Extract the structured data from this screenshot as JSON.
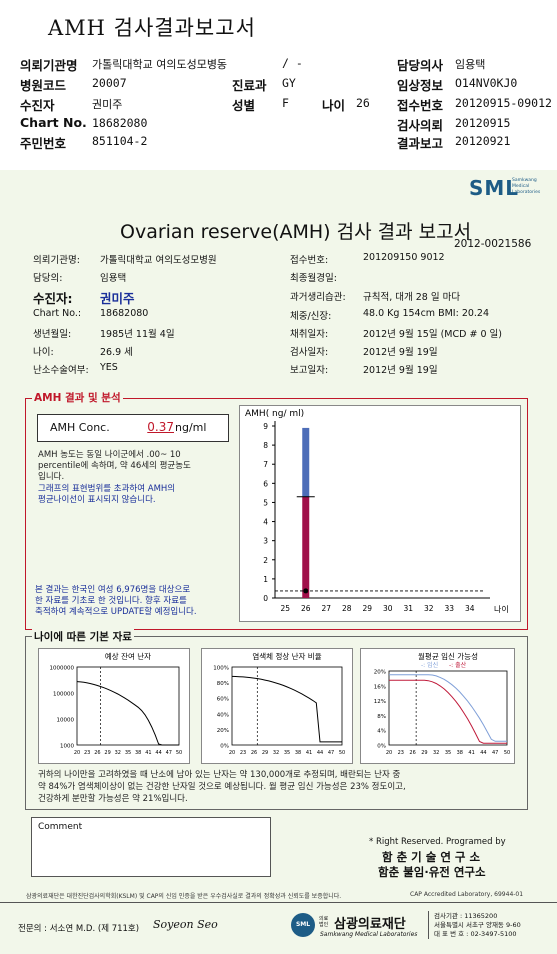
{
  "header": {
    "title": "AMH 검사결과보고서",
    "rows": [
      {
        "l1": "의뢰기관명",
        "v1": "가톨릭대학교 여의도성모병동",
        "v1b": "/ -",
        "l3": "담당의사",
        "v3": "임용택"
      },
      {
        "l1": "병원코드",
        "v1": "20007",
        "l2": "진료과",
        "v2": "GY",
        "l3": "임상정보",
        "v3": "O14NV0KJ0"
      },
      {
        "l1": "수진자",
        "v1": "권미주",
        "l2": "성별",
        "v2": "F",
        "l2b": "나이",
        "v2b": "26",
        "l3": "접수번호",
        "v3": "20120915-09012"
      },
      {
        "l1": "Chart No.",
        "v1": "18682080",
        "l3": "검사의뢰",
        "v3": "20120915"
      },
      {
        "l1": "주민번호",
        "v1": "851104-2",
        "l3": "결과보고",
        "v3": "20120921"
      }
    ]
  },
  "report": {
    "logo": "SML",
    "logo_sub": [
      "Samkwang",
      "Medical",
      "Laboratories"
    ],
    "title": "Ovarian reserve(AMH) 검사 결과 보고서",
    "doc_no": "2012-0021586",
    "left_info": [
      {
        "label": "의뢰기관명:",
        "value": "가톨릭대학교 여의도성모병원"
      },
      {
        "label": "담당의:",
        "value": "임용택"
      },
      {
        "label": "수진자:",
        "value": "권미주"
      },
      {
        "label": "Chart No.:",
        "value": "18682080"
      },
      {
        "label": "생년월일:",
        "value": "1985년 11월 4일"
      },
      {
        "label": "나이:",
        "value": "26.9 세"
      },
      {
        "label": "난소수술여부:",
        "value": "YES"
      }
    ],
    "right_info": [
      {
        "label": "접수번호:",
        "value": "201209150 9012"
      },
      {
        "label": "최종월경일:",
        "value": ""
      },
      {
        "label": "과거생리습관:",
        "value": "규칙적, 대개  28 일 마다"
      },
      {
        "label": "체중/신장:",
        "value": "48.0 Kg   154cm   BMI:  20.24"
      },
      {
        "label": "채취일자:",
        "value": "2012년 9월 15일   (MCD # 0 일)"
      },
      {
        "label": "검사일자:",
        "value": "2012년 9월 19일"
      },
      {
        "label": "보고일자:",
        "value": "2012년 9월 19일"
      }
    ],
    "amh_section": {
      "heading": "AMH 결과 및 분석",
      "conc_label": "AMH Conc.",
      "conc_value": "0.37",
      "conc_unit": "ng/ml",
      "note1": [
        "AMH 농도는 동일 나이군에서  .00~ 10",
        "percentile에 속하며,  약  46세의 평균농도",
        "입니다."
      ],
      "note2": [
        "그래프의 표현범위를 초과하여 AMH의",
        "평균나이선이 표시되지 않습니다."
      ],
      "note3": [
        "본 결과는 한국인 여성 6,976명을 대상으로",
        "한 자료를 기초로 한 것입니다. 향후 자료를",
        "축적하여 계속적으로 UPDATE할 예정입니다."
      ]
    },
    "basic_section": {
      "heading": "나이에 따른 기본 자료",
      "chart_titles": [
        "예상 잔여 난자",
        "염색체 정상 난자 비율",
        "월평균 임신 가능성"
      ],
      "legend": [
        "임신",
        "출산"
      ],
      "summary": [
        "귀하의 나이만을 고려하였을 때 난소에 남아 있는 난자는 약   130,000개로 추정되며, 배란되는 난자 중",
        "약  84%가 염색체이상이 없는 건강한 난자일 것으로 예상됩니다. 월 평균 임신 가능성은   23% 정도이고,",
        "건강하게 분만할 가능성은 약   21%입니다."
      ]
    },
    "comment_label": "Comment",
    "rights": "* Right Reserved. Programed by",
    "author1": "함 춘  기 술  연 구 소",
    "author2": "함춘 불임·유전 연구소",
    "footnote": "삼광의료재단은 대한진단검사의학회(KSLM) 및 CAP의 신임 인증을 받은 우수검사실로 결과의 정확성과 신뢰도를 보증합니다.",
    "cap": "CAP  Accredited  Laboratory,  69944-01",
    "specialist": "전문의 : 서소연 M.D. (제 711호)",
    "signature": "Soyeon Seo",
    "foundation": "삼광의료재단",
    "foundation_en": "Samkwang Medical Laboratories",
    "foundation_prefix": "의료 법인",
    "contact": [
      "검사기관 : 11365200",
      "서울특별시 서초구 양재동 9-60",
      "대 표 번 호 : 02-3497-5100"
    ]
  },
  "chart_data": [
    {
      "type": "bar",
      "ylabel": "AMH( ng/ ml)",
      "ylim": [
        0,
        9
      ],
      "yticks": [
        "0",
        "1",
        "2",
        "3",
        "4",
        "5",
        "6",
        "7",
        "8",
        "9"
      ],
      "categories": [
        "25",
        "26",
        "27",
        "28",
        "29",
        "30",
        "31",
        "32",
        "33",
        "34"
      ],
      "xlabel": "나이",
      "range_bar": {
        "x": "26",
        "low": 5.3,
        "high": 8.9
      },
      "mean_bar": {
        "x": "26",
        "value": 5.3
      },
      "point": {
        "x": "26",
        "value": 0.37
      },
      "reference_line": 0.37
    },
    {
      "type": "line",
      "title": "예상 잔여 난자",
      "ylog": true,
      "yticks": [
        "1000000",
        "100000",
        "10000",
        "1000"
      ],
      "xticks": [
        "20",
        "23",
        "26",
        "29",
        "32",
        "35",
        "38",
        "41",
        "44",
        "47",
        "50"
      ],
      "marker_x": 26.9
    },
    {
      "type": "line",
      "title": "염색체 정상 난자 비율",
      "yticks": [
        "100%",
        "80%",
        "60%",
        "40%",
        "20%",
        "0%"
      ],
      "xticks": [
        "20",
        "23",
        "26",
        "29",
        "32",
        "35",
        "38",
        "41",
        "44",
        "47",
        "50"
      ],
      "marker_x": 26.9
    },
    {
      "type": "line",
      "title": "월평균 임신 가능성",
      "yticks": [
        "20%",
        "16%",
        "12%",
        "8%",
        "4%",
        "0%"
      ],
      "xticks": [
        "20",
        "23",
        "26",
        "29",
        "32",
        "35",
        "38",
        "41",
        "44",
        "47",
        "50"
      ],
      "series": [
        {
          "name": "임신",
          "color": "#7f9fd8"
        },
        {
          "name": "출산",
          "color": "#c01a3a"
        }
      ],
      "marker_x": 26.9
    }
  ]
}
